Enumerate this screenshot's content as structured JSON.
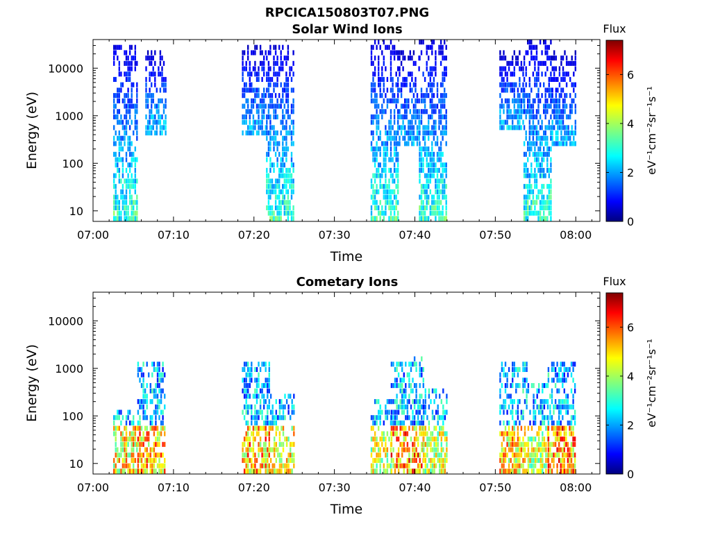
{
  "figure": {
    "title": "RPCICA150803T07.PNG"
  },
  "colorbar": {
    "label": "Flux",
    "unit_label": "eV⁻¹cm⁻²sr⁻¹s⁻¹",
    "ticks": [
      "0",
      "2",
      "4",
      "6"
    ],
    "range": [
      0,
      7.4
    ],
    "colormap": "jet"
  },
  "chart_data": [
    {
      "type": "heatmap",
      "title": "Solar Wind Ions",
      "xlabel": "Time",
      "ylabel": "Energy (eV)",
      "x_range_minutes": [
        0,
        63
      ],
      "x_ticks": [
        "07:00",
        "07:10",
        "07:20",
        "07:30",
        "07:40",
        "07:50",
        "08:00"
      ],
      "y_scale": "log",
      "y_range": [
        6,
        40000
      ],
      "y_ticks": [
        "10",
        "100",
        "1000",
        "10000"
      ],
      "bursts": [
        {
          "start": "07:02.5",
          "end": "07:05.5",
          "e_min": 6,
          "e_max": 30000,
          "flux_hi": 4.0
        },
        {
          "start": "07:06.5",
          "end": "07:09",
          "e_min": 300,
          "e_max": 20000,
          "flux_hi": 3.3
        },
        {
          "start": "07:18.5",
          "end": "07:21.5",
          "e_min": 300,
          "e_max": 30000,
          "flux_hi": 3.0
        },
        {
          "start": "07:21.5",
          "end": "07:25",
          "e_min": 6,
          "e_max": 30000,
          "flux_hi": 4.0
        },
        {
          "start": "07:34.5",
          "end": "07:38",
          "e_min": 6,
          "e_max": 35000,
          "flux_hi": 4.0
        },
        {
          "start": "07:38",
          "end": "07:40.5",
          "e_min": 200,
          "e_max": 20000,
          "flux_hi": 3.0
        },
        {
          "start": "07:40.5",
          "end": "07:44",
          "e_min": 6,
          "e_max": 35000,
          "flux_hi": 4.0
        },
        {
          "start": "07:50.5",
          "end": "07:53.5",
          "e_min": 500,
          "e_max": 20000,
          "flux_hi": 3.0
        },
        {
          "start": "07:53.5",
          "end": "07:57",
          "e_min": 6,
          "e_max": 35000,
          "flux_hi": 4.0
        },
        {
          "start": "07:57",
          "end": "08:00",
          "e_min": 200,
          "e_max": 20000,
          "flux_hi": 3.0
        }
      ]
    },
    {
      "type": "heatmap",
      "title": "Cometary Ions",
      "xlabel": "Time",
      "ylabel": "Energy (eV)",
      "x_range_minutes": [
        0,
        63
      ],
      "x_ticks": [
        "07:00",
        "07:10",
        "07:20",
        "07:30",
        "07:40",
        "07:50",
        "08:00"
      ],
      "y_scale": "log",
      "y_range": [
        6,
        40000
      ],
      "y_ticks": [
        "10",
        "100",
        "1000",
        "10000"
      ],
      "bursts": [
        {
          "start": "07:02.5",
          "end": "07:05.5",
          "e_min": 6,
          "e_max": 130,
          "flux_hi": 6.0
        },
        {
          "start": "07:05.5",
          "end": "07:09",
          "e_min": 6,
          "e_max": 1200,
          "flux_hi": 6.5
        },
        {
          "start": "07:18.5",
          "end": "07:22",
          "e_min": 6,
          "e_max": 1200,
          "flux_hi": 6.5
        },
        {
          "start": "07:22",
          "end": "07:25",
          "e_min": 6,
          "e_max": 250,
          "flux_hi": 5.8
        },
        {
          "start": "07:34.5",
          "end": "07:37",
          "e_min": 6,
          "e_max": 200,
          "flux_hi": 5.5
        },
        {
          "start": "07:37",
          "end": "07:41",
          "e_min": 6,
          "e_max": 1500,
          "flux_hi": 6.8
        },
        {
          "start": "07:41",
          "end": "07:44",
          "e_min": 6,
          "e_max": 300,
          "flux_hi": 5.5
        },
        {
          "start": "07:50.5",
          "end": "07:54",
          "e_min": 6,
          "e_max": 1200,
          "flux_hi": 6.2
        },
        {
          "start": "07:54",
          "end": "07:56.5",
          "e_min": 6,
          "e_max": 400,
          "flux_hi": 5.5
        },
        {
          "start": "07:56.5",
          "end": "08:00",
          "e_min": 6,
          "e_max": 1300,
          "flux_hi": 6.8
        }
      ]
    }
  ]
}
